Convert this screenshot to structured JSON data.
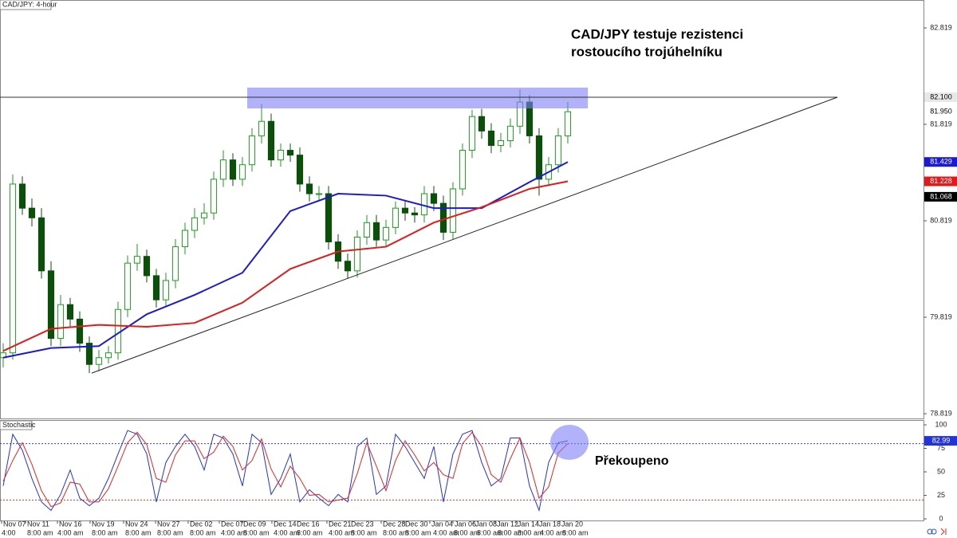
{
  "chart_data": [
    {
      "type": "candlestick",
      "title": "CAD/JPY: 4-hour",
      "annotation": [
        "CAD/JPY testuje rezistenci",
        "rostoucího trojúhelníku"
      ],
      "xlim": [
        -0.333,
        96.17
      ],
      "ylim": [
        78.77,
        83.108
      ],
      "yticks": [
        78.819,
        79.819,
        80.819,
        81.819,
        82.819
      ],
      "colors": {
        "up": "#1f9a1f",
        "down": "#0b4f0b"
      },
      "open": [
        79.4,
        79.45,
        81.2,
        80.95,
        80.85,
        80.3,
        79.6,
        79.95,
        79.8,
        79.55,
        79.33,
        79.4,
        79.45,
        79.9,
        80.38,
        80.45,
        80.25,
        80.0,
        80.2,
        80.55,
        80.72,
        80.85,
        80.9,
        81.25,
        81.45,
        81.25,
        81.4,
        81.7,
        81.85,
        81.45,
        81.55,
        81.5,
        81.2,
        81.1,
        81.1,
        80.6,
        80.4,
        80.3,
        80.65,
        80.8,
        80.62,
        80.75,
        80.95,
        80.9,
        80.88,
        81.1,
        81.0,
        80.7,
        81.15,
        81.55,
        81.9,
        81.75,
        81.6,
        81.65,
        81.8,
        82.05,
        81.7,
        81.25,
        81.4,
        81.7
      ],
      "high": [
        79.55,
        81.3,
        81.28,
        81.05,
        80.95,
        80.4,
        80.05,
        80.02,
        79.88,
        79.62,
        79.48,
        79.52,
        79.98,
        80.46,
        80.58,
        80.52,
        80.32,
        80.28,
        80.63,
        80.8,
        80.95,
        81.0,
        81.33,
        81.55,
        81.52,
        81.48,
        81.78,
        82.03,
        81.93,
        81.62,
        81.62,
        81.58,
        81.28,
        81.18,
        81.18,
        80.68,
        80.48,
        80.72,
        80.88,
        80.88,
        80.83,
        81.02,
        81.03,
        80.96,
        81.18,
        81.18,
        81.08,
        81.22,
        81.62,
        81.97,
        81.98,
        81.83,
        81.73,
        81.88,
        82.18,
        82.12,
        81.78,
        81.48,
        81.78,
        82.05
      ],
      "low": [
        79.3,
        79.38,
        80.88,
        80.76,
        80.22,
        79.52,
        79.52,
        79.72,
        79.46,
        79.24,
        79.26,
        79.34,
        79.38,
        79.82,
        80.3,
        80.18,
        79.92,
        79.93,
        80.12,
        80.47,
        80.64,
        80.78,
        80.83,
        81.17,
        81.18,
        81.18,
        81.33,
        81.62,
        81.38,
        81.38,
        81.43,
        81.12,
        81.02,
        81.02,
        80.52,
        80.32,
        80.22,
        80.23,
        80.57,
        80.55,
        80.55,
        80.68,
        80.82,
        80.8,
        80.8,
        80.92,
        80.62,
        80.63,
        81.08,
        81.47,
        81.67,
        81.52,
        81.53,
        81.58,
        81.72,
        81.62,
        81.08,
        81.18,
        81.32,
        81.62
      ],
      "close": [
        79.45,
        81.2,
        80.95,
        80.85,
        80.3,
        79.6,
        79.95,
        79.8,
        79.55,
        79.33,
        79.4,
        79.45,
        79.9,
        80.38,
        80.45,
        80.25,
        80.0,
        80.2,
        80.55,
        80.72,
        80.85,
        80.9,
        81.25,
        81.45,
        81.25,
        81.4,
        81.7,
        81.85,
        81.45,
        81.55,
        81.5,
        81.2,
        81.1,
        81.1,
        80.6,
        80.4,
        80.3,
        80.65,
        80.8,
        80.62,
        80.75,
        80.95,
        80.9,
        80.88,
        81.1,
        81.0,
        80.7,
        81.15,
        81.55,
        81.9,
        81.75,
        81.6,
        81.65,
        81.8,
        82.05,
        81.7,
        81.25,
        81.4,
        81.7,
        81.95
      ],
      "series": [
        {
          "color": "#1a1ad6",
          "x": [
            0,
            5,
            10,
            15,
            20,
            25,
            30,
            35,
            40,
            45,
            50,
            55,
            59
          ],
          "values": [
            79.4,
            79.5,
            79.52,
            79.85,
            80.05,
            80.28,
            80.92,
            81.1,
            81.08,
            80.95,
            80.95,
            81.22,
            81.429
          ]
        },
        {
          "color": "#e01b1b",
          "x": [
            0,
            5,
            10,
            15,
            20,
            25,
            30,
            35,
            40,
            45,
            50,
            55,
            59
          ],
          "values": [
            79.47,
            79.7,
            79.74,
            79.72,
            79.76,
            79.97,
            80.32,
            80.5,
            80.55,
            80.8,
            80.96,
            81.15,
            81.228
          ]
        }
      ],
      "resistance": {
        "value": 82.1,
        "label": "82.100",
        "box": {
          "x": [
            25.5,
            61.1
          ],
          "y": [
            81.984,
            82.2
          ]
        },
        "box_color": "#7f7ff6"
      },
      "trendline": {
        "x": [
          9.25,
          87.17
        ],
        "y": [
          79.24,
          82.1
        ],
        "current": 81.068
      },
      "last_price": {
        "value": 81.95,
        "label": "81.950"
      }
    },
    {
      "type": "line",
      "title": "Stochastic",
      "annotation": "Překoupeno",
      "xlim": [
        -0.333,
        96.17
      ],
      "ylim": [
        -1.7,
        105.1
      ],
      "yticks": [
        0,
        25,
        50,
        75,
        100
      ],
      "levels": [
        {
          "value": 80,
          "color": "#3a3ad8"
        },
        {
          "value": 20,
          "color": "#e03030"
        }
      ],
      "series": [
        {
          "color": "#2233dd",
          "values": [
            35,
            90,
            73,
            43,
            18,
            9,
            26,
            52,
            22,
            14,
            22,
            43,
            69,
            94,
            90,
            69,
            18,
            60,
            77,
            90,
            77,
            52,
            90,
            86,
            69,
            35,
            90,
            81,
            26,
            43,
            69,
            18,
            31,
            22,
            14,
            26,
            18,
            77,
            86,
            26,
            35,
            90,
            77,
            60,
            43,
            77,
            18,
            69,
            90,
            94,
            60,
            35,
            43,
            86,
            86,
            35,
            9,
            60,
            81,
            82.99
          ]
        },
        {
          "color": "#e5261e",
          "values": [
            40,
            62,
            81,
            58,
            30,
            13,
            17,
            39,
            37,
            18,
            18,
            32,
            56,
            81,
            92,
            79,
            43,
            39,
            68,
            83,
            83,
            64,
            71,
            88,
            77,
            52,
            62,
            85,
            53,
            34,
            56,
            43,
            25,
            26,
            18,
            20,
            22,
            48,
            81,
            56,
            30,
            62,
            83,
            68,
            51,
            60,
            47,
            43,
            80,
            92,
            77,
            47,
            39,
            64,
            86,
            60,
            22,
            34,
            70,
            80
          ]
        }
      ],
      "xticks": [
        {
          "value": -0.17,
          "label": "Nov 07"
        },
        {
          "value": 2.33,
          "label": "Nov 11"
        },
        {
          "value": 5.67,
          "label": "Nov 16"
        },
        {
          "value": 9.08,
          "label": "Nov 19"
        },
        {
          "value": 12.58,
          "label": "Nov 24"
        },
        {
          "value": 15.92,
          "label": "Nov 27"
        },
        {
          "value": 19.33,
          "label": "Dec 02"
        },
        {
          "value": 22.58,
          "label": "Dec 07"
        },
        {
          "value": 24.92,
          "label": "Dec 09"
        },
        {
          "value": 28.08,
          "label": "Dec 14"
        },
        {
          "value": 30.5,
          "label": "Dec 16"
        },
        {
          "value": 33.83,
          "label": "Dec 21"
        },
        {
          "value": 36.17,
          "label": "Dec 23"
        },
        {
          "value": 39.5,
          "label": "Dec 28"
        },
        {
          "value": 41.83,
          "label": "Dec 30"
        },
        {
          "value": 44.58,
          "label": "Jan 04"
        },
        {
          "value": 47,
          "label": "Jan 06"
        },
        {
          "value": 49.17,
          "label": "Jan 08"
        },
        {
          "value": 51.42,
          "label": "Jan 12"
        },
        {
          "value": 53.58,
          "label": "Jan 14"
        },
        {
          "value": 55.83,
          "label": "Jan 18"
        },
        {
          "value": 58.17,
          "label": "Jan 20"
        }
      ],
      "xticks_time": [
        {
          "value": -0.33,
          "label": "4:00"
        },
        {
          "value": 2.33,
          "label": "8:00 am"
        },
        {
          "value": 5.5,
          "label": "4:00 am"
        },
        {
          "value": 9.08,
          "label": "8:00 am"
        },
        {
          "value": 12.58,
          "label": "8:00 am"
        },
        {
          "value": 15.92,
          "label": "8:00 am"
        },
        {
          "value": 19.33,
          "label": "8:00 am"
        },
        {
          "value": 22.58,
          "label": "4:00 am"
        },
        {
          "value": 24.92,
          "label": "8:00 am"
        },
        {
          "value": 28.08,
          "label": "4:00 am"
        },
        {
          "value": 30.5,
          "label": "8:00 am"
        },
        {
          "value": 33.83,
          "label": "4:00 am"
        },
        {
          "value": 36.17,
          "label": "8:00 am"
        },
        {
          "value": 39.5,
          "label": "8:00 am"
        },
        {
          "value": 41.83,
          "label": "8:00 am"
        },
        {
          "value": 44.75,
          "label": "4:00 am"
        },
        {
          "value": 46.92,
          "label": "8:00 am"
        },
        {
          "value": 49.33,
          "label": "8:00 am"
        },
        {
          "value": 51.5,
          "label": "8:00 am"
        },
        {
          "value": 53.58,
          "label": "8:00 am"
        },
        {
          "value": 55.92,
          "label": "4:00 am"
        },
        {
          "value": 58.25,
          "label": "8:00 am"
        }
      ]
    }
  ]
}
